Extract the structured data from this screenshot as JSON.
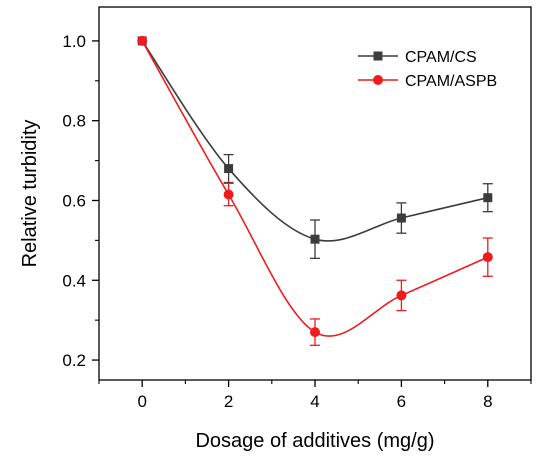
{
  "chart_data": {
    "type": "line",
    "xlabel": "Dosage of additives (mg/g)",
    "ylabel": "Relative turbidity",
    "xlim": [
      -1,
      9
    ],
    "ylim": [
      0.15,
      1.085
    ],
    "xticks": [
      0,
      2,
      4,
      6,
      8
    ],
    "xtick_labels": [
      "0",
      "2",
      "4",
      "6",
      "8"
    ],
    "yticks": [
      0.2,
      0.4,
      0.6,
      0.8,
      1.0
    ],
    "ytick_labels": [
      "0.2",
      "0.4",
      "0.6",
      "0.8",
      "1.0"
    ],
    "legend_position": "top-right",
    "grid": false,
    "series": [
      {
        "name": "CPAM/CS",
        "color": "#3c3c3c",
        "marker": "square",
        "x": [
          0,
          2,
          4,
          6,
          8
        ],
        "y": [
          1.0,
          0.68,
          0.503,
          0.556,
          0.607
        ],
        "yerr": [
          0.0,
          0.035,
          0.048,
          0.038,
          0.035
        ]
      },
      {
        "name": "CPAM/ASPB",
        "color": "#ee1c1c",
        "marker": "circle",
        "x": [
          0,
          2,
          4,
          6,
          8
        ],
        "y": [
          1.0,
          0.615,
          0.27,
          0.362,
          0.458
        ],
        "yerr": [
          0.0,
          0.028,
          0.033,
          0.038,
          0.048
        ]
      }
    ]
  }
}
